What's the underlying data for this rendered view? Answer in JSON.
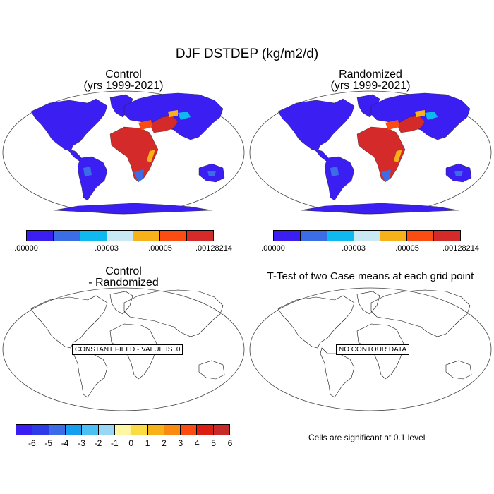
{
  "figure": {
    "title": "DJF DSTDEP (kg/m2/d)"
  },
  "panels": {
    "control": {
      "title_line1": "Control",
      "title_line2": "(yrs 1999-2021)"
    },
    "randomized": {
      "title_line1": "Randomized",
      "title_line2": "(yrs 1999-2021)"
    },
    "difference": {
      "title_line1": "Control",
      "title_line2": "- Randomized",
      "message": "CONSTANT FIELD - VALUE IS .0"
    },
    "ttest": {
      "title": "T-Test of two Case means at each grid point",
      "message": "NO CONTOUR DATA",
      "note": "Cells are significant at 0.1 level"
    }
  },
  "colorbar_top": {
    "colors": [
      "#3b1ff2",
      "#3b6de6",
      "#10b8f0",
      "#c9e9f5",
      "#f7b21a",
      "#fb4d12",
      "#d42a2a"
    ],
    "labels": [
      ".00000",
      ".00003",
      ".00005",
      ".00128214"
    ]
  },
  "colorbar_bottom": {
    "colors": [
      "#3b1ff2",
      "#2d3ce8",
      "#3b6de6",
      "#169fef",
      "#4cc0f2",
      "#9ad7f5",
      "#fdf6a3",
      "#fbdc45",
      "#f7b21a",
      "#fb8a10",
      "#fb4d12",
      "#dc1d12",
      "#c82a2a"
    ],
    "labels": [
      "-6",
      "-5",
      "-4",
      "-3",
      "-2",
      "-1",
      "0",
      "1",
      "2",
      "3",
      "4",
      "5",
      "6"
    ]
  }
}
